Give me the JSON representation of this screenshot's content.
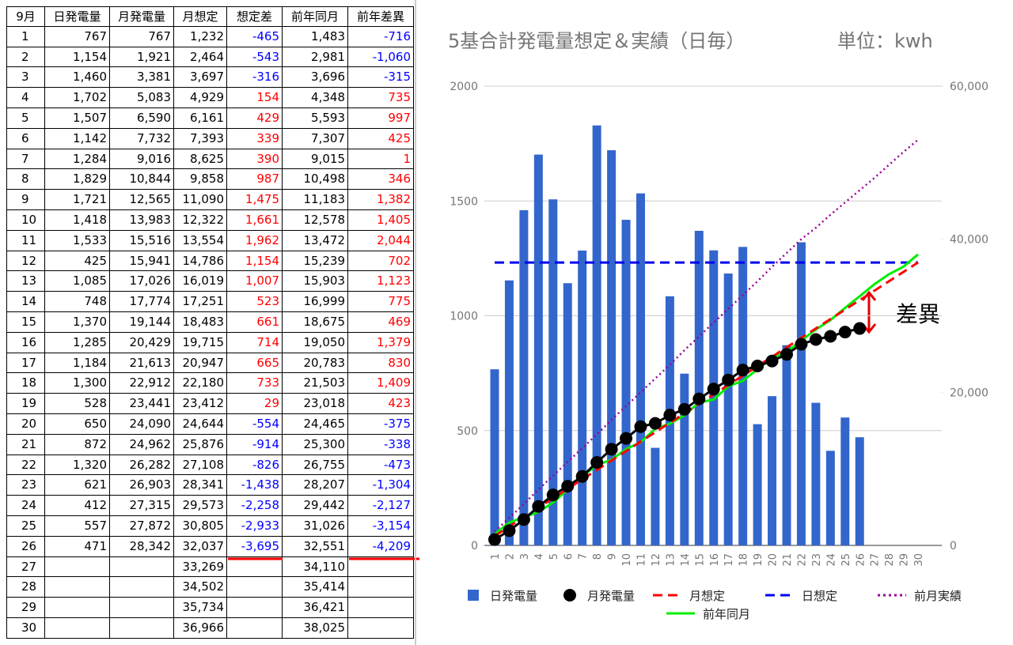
{
  "table": {
    "headers": [
      "9月",
      "日発電量",
      "月発電量",
      "月想定",
      "想定差",
      "前年同月",
      "前年差異"
    ],
    "rows": [
      [
        "1",
        "767",
        "767",
        "1,232",
        "-465",
        "1,483",
        "-716"
      ],
      [
        "2",
        "1,154",
        "1,921",
        "2,464",
        "-543",
        "2,981",
        "-1,060"
      ],
      [
        "3",
        "1,460",
        "3,381",
        "3,697",
        "-316",
        "3,696",
        "-315"
      ],
      [
        "4",
        "1,702",
        "5,083",
        "4,929",
        "154",
        "4,348",
        "735"
      ],
      [
        "5",
        "1,507",
        "6,590",
        "6,161",
        "429",
        "5,593",
        "997"
      ],
      [
        "6",
        "1,142",
        "7,732",
        "7,393",
        "339",
        "7,307",
        "425"
      ],
      [
        "7",
        "1,284",
        "9,016",
        "8,625",
        "390",
        "9,015",
        "1"
      ],
      [
        "8",
        "1,829",
        "10,844",
        "9,858",
        "987",
        "10,498",
        "346"
      ],
      [
        "9",
        "1,721",
        "12,565",
        "11,090",
        "1,475",
        "11,183",
        "1,382"
      ],
      [
        "10",
        "1,418",
        "13,983",
        "12,322",
        "1,661",
        "12,578",
        "1,405"
      ],
      [
        "11",
        "1,533",
        "15,516",
        "13,554",
        "1,962",
        "13,472",
        "2,044"
      ],
      [
        "12",
        "425",
        "15,941",
        "14,786",
        "1,154",
        "15,239",
        "702"
      ],
      [
        "13",
        "1,085",
        "17,026",
        "16,019",
        "1,007",
        "15,903",
        "1,123"
      ],
      [
        "14",
        "748",
        "17,774",
        "17,251",
        "523",
        "16,999",
        "775"
      ],
      [
        "15",
        "1,370",
        "19,144",
        "18,483",
        "661",
        "18,675",
        "469"
      ],
      [
        "16",
        "1,285",
        "20,429",
        "19,715",
        "714",
        "19,050",
        "1,379"
      ],
      [
        "17",
        "1,184",
        "21,613",
        "20,947",
        "665",
        "20,783",
        "830"
      ],
      [
        "18",
        "1,300",
        "22,912",
        "22,180",
        "733",
        "21,503",
        "1,409"
      ],
      [
        "19",
        "528",
        "23,441",
        "23,412",
        "29",
        "23,018",
        "423"
      ],
      [
        "20",
        "650",
        "24,090",
        "24,644",
        "-554",
        "24,465",
        "-375"
      ],
      [
        "21",
        "872",
        "24,962",
        "25,876",
        "-914",
        "25,300",
        "-338"
      ],
      [
        "22",
        "1,320",
        "26,282",
        "27,108",
        "-826",
        "26,755",
        "-473"
      ],
      [
        "23",
        "621",
        "26,903",
        "28,341",
        "-1,438",
        "28,207",
        "-1,304"
      ],
      [
        "24",
        "412",
        "27,315",
        "29,573",
        "-2,258",
        "29,442",
        "-2,127"
      ],
      [
        "25",
        "557",
        "27,872",
        "30,805",
        "-2,933",
        "31,026",
        "-3,154"
      ],
      [
        "26",
        "471",
        "28,342",
        "32,037",
        "-3,695",
        "32,551",
        "-4,209"
      ],
      [
        "27",
        null,
        null,
        "33,269",
        null,
        "34,110",
        null
      ],
      [
        "28",
        null,
        null,
        "34,502",
        null,
        "35,414",
        null
      ],
      [
        "29",
        null,
        null,
        "35,734",
        null,
        "36,421",
        null
      ],
      [
        "30",
        null,
        null,
        "36,966",
        null,
        "38,025",
        null
      ]
    ]
  },
  "chart_data": {
    "type": "combo",
    "title": "5基合計発電量想定＆実績（日毎）",
    "subtitle": "単位：kwh",
    "annotation": "差異",
    "categories": [
      "1",
      "2",
      "3",
      "4",
      "5",
      "6",
      "7",
      "8",
      "9",
      "10",
      "11",
      "12",
      "13",
      "14",
      "15",
      "16",
      "17",
      "18",
      "19",
      "20",
      "21",
      "22",
      "23",
      "24",
      "25",
      "26",
      "27",
      "28",
      "29",
      "30"
    ],
    "ylim": [
      0,
      2000
    ],
    "yticks": [
      0,
      500,
      1000,
      1500,
      2000
    ],
    "y2lim": [
      0,
      60000
    ],
    "y2ticks": [
      0,
      {
        "value": 20000,
        "label": "20,000"
      },
      {
        "value": 40000,
        "label": "40,000"
      },
      {
        "value": 60000,
        "label": "60,000"
      }
    ],
    "grid": true,
    "series": [
      {
        "name": "日発電量",
        "type": "bar",
        "color": "#3366cc",
        "values": [
          767,
          1154,
          1460,
          1702,
          1507,
          1142,
          1284,
          1829,
          1721,
          1418,
          1533,
          425,
          1085,
          748,
          1370,
          1285,
          1184,
          1300,
          528,
          650,
          872,
          1320,
          621,
          412,
          557,
          471,
          null,
          null,
          null,
          null
        ]
      },
      {
        "name": "月発電量",
        "type": "line",
        "axis": "y2",
        "color": "#000000",
        "marker": true,
        "values": [
          767,
          1921,
          3381,
          5083,
          6590,
          7732,
          9016,
          10844,
          12565,
          13983,
          15516,
          15941,
          17026,
          17774,
          19144,
          20429,
          21613,
          22912,
          23441,
          24090,
          24962,
          26282,
          26903,
          27315,
          27872,
          28342,
          null,
          null,
          null,
          null
        ]
      },
      {
        "name": "月想定",
        "type": "line",
        "axis": "y2",
        "color": "#ff0000",
        "style": "dashed",
        "values": [
          1232,
          2464,
          3697,
          4929,
          6161,
          7393,
          8625,
          9858,
          11090,
          12322,
          13554,
          14786,
          16019,
          17251,
          18483,
          19715,
          20947,
          22180,
          23412,
          24644,
          25876,
          27108,
          28341,
          29573,
          30805,
          32037,
          33269,
          34502,
          35734,
          36966
        ]
      },
      {
        "name": "日想定",
        "type": "line",
        "color": "#0000ee",
        "style": "dashed",
        "values": [
          1232,
          1232,
          1232,
          1232,
          1232,
          1232,
          1232,
          1232,
          1232,
          1232,
          1232,
          1232,
          1232,
          1232,
          1232,
          1232,
          1232,
          1232,
          1232,
          1232,
          1232,
          1232,
          1232,
          1232,
          1232,
          1232,
          1232,
          1232,
          1232,
          1232
        ]
      },
      {
        "name": "前月実績",
        "type": "line",
        "axis": "y2",
        "color": "#990099",
        "style": "dotted",
        "values": [
          1800,
          3600,
          5400,
          7300,
          9100,
          10900,
          12700,
          14500,
          16400,
          18200,
          20000,
          21800,
          23600,
          25500,
          27300,
          29100,
          30900,
          32700,
          34500,
          36400,
          38200,
          40000,
          41500,
          43200,
          44800,
          46400,
          48000,
          49700,
          51400,
          53000
        ]
      },
      {
        "name": "前年同月",
        "type": "line",
        "axis": "y2",
        "color": "#00ee00",
        "values": [
          1483,
          2981,
          3696,
          4348,
          5593,
          7307,
          9015,
          10498,
          11183,
          12578,
          13472,
          15239,
          15903,
          16999,
          18675,
          19050,
          20783,
          21503,
          23018,
          24465,
          25300,
          26755,
          28207,
          29442,
          31026,
          32551,
          34110,
          35414,
          36421,
          38025
        ]
      }
    ]
  }
}
